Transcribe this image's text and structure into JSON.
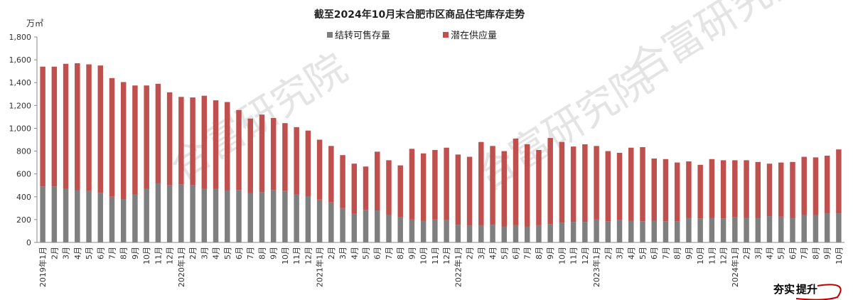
{
  "chart_data": {
    "type": "bar",
    "stacked": true,
    "title": "截至2024年10月末合肥市区商品住宅库存走势",
    "unit": "万㎡",
    "ylim": [
      0,
      1800
    ],
    "yticks": [
      "0",
      "200",
      "400",
      "600",
      "800",
      "1,000",
      "1,200",
      "1,400",
      "1,600",
      "1,800"
    ],
    "legend_position": "top",
    "categories": [
      "2019年1月",
      "2月",
      "3月",
      "4月",
      "5月",
      "6月",
      "7月",
      "8月",
      "9月",
      "10月",
      "11月",
      "12月",
      "2020年1月",
      "2月",
      "3月",
      "4月",
      "5月",
      "6月",
      "7月",
      "8月",
      "9月",
      "10月",
      "11月",
      "12月",
      "2021年1月",
      "2月",
      "3月",
      "4月",
      "5月",
      "6月",
      "7月",
      "8月",
      "9月",
      "10月",
      "11月",
      "12月",
      "2022年1月",
      "2月",
      "3月",
      "4月",
      "5月",
      "6月",
      "7月",
      "8月",
      "9月",
      "10月",
      "11月",
      "12月",
      "2023年1月",
      "2月",
      "3月",
      "4月",
      "5月",
      "6月",
      "7月",
      "8月",
      "9月",
      "10月",
      "11月",
      "12月",
      "2024年1月",
      "2月",
      "3月",
      "4月",
      "5月",
      "6月",
      "7月",
      "8月",
      "9月",
      "10月"
    ],
    "series": [
      {
        "name": "结转可售存量",
        "color": "#7f7f7f",
        "values": [
          490,
          490,
          470,
          455,
          450,
          435,
          400,
          380,
          420,
          470,
          520,
          500,
          510,
          500,
          470,
          470,
          455,
          460,
          430,
          440,
          460,
          450,
          420,
          405,
          375,
          350,
          300,
          250,
          285,
          280,
          240,
          220,
          200,
          190,
          200,
          195,
          155,
          145,
          150,
          155,
          140,
          150,
          140,
          150,
          160,
          170,
          180,
          180,
          200,
          185,
          195,
          190,
          185,
          190,
          185,
          185,
          215,
          210,
          215,
          210,
          220,
          215,
          215,
          230,
          225,
          215,
          240,
          240,
          255,
          255
        ]
      },
      {
        "name": "潜在供应量",
        "color": "#c0504d",
        "values": [
          1050,
          1050,
          1095,
          1115,
          1110,
          1115,
          1040,
          1025,
          955,
          905,
          870,
          815,
          765,
          770,
          815,
          775,
          775,
          700,
          655,
          680,
          630,
          595,
          590,
          575,
          525,
          495,
          465,
          440,
          380,
          515,
          480,
          455,
          620,
          590,
          610,
          635,
          615,
          605,
          730,
          690,
          660,
          760,
          720,
          660,
          755,
          710,
          660,
          680,
          645,
          615,
          590,
          640,
          650,
          545,
          545,
          515,
          495,
          470,
          515,
          510,
          500,
          505,
          490,
          460,
          475,
          490,
          510,
          505,
          505,
          560
        ]
      }
    ]
  },
  "watermarks": [
    "合富研究院",
    "合富研究院",
    "合富研究院"
  ],
  "brand": {
    "part1": "夯实",
    "part2": "提升",
    "color1": "#c00000",
    "color2": "#333333"
  }
}
